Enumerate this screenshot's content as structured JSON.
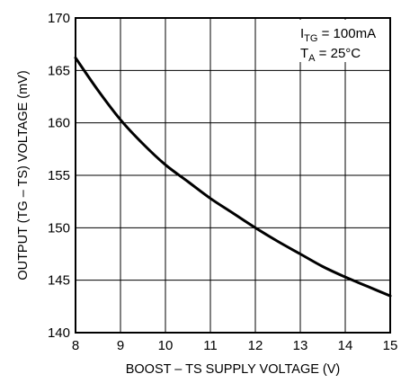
{
  "chart_data": {
    "type": "line",
    "title": "",
    "xlabel": "BOOST – TS SUPPLY VOLTAGE (V)",
    "ylabel": "OUTPUT (TG – TS) VOLTAGE (mV)",
    "xlim": [
      8,
      15
    ],
    "ylim": [
      140,
      170
    ],
    "x_ticks": [
      8,
      9,
      10,
      11,
      12,
      13,
      14,
      15
    ],
    "y_ticks": [
      140,
      145,
      150,
      155,
      160,
      165,
      170
    ],
    "x_tick_labels": [
      "8",
      "9",
      "10",
      "11",
      "12",
      "13",
      "14",
      "15"
    ],
    "y_tick_labels": [
      "140",
      "145",
      "150",
      "155",
      "160",
      "165",
      "170"
    ],
    "grid": true,
    "annotations": [
      {
        "main": "I",
        "sub": "TG",
        "rest": " = 100mA"
      },
      {
        "main": "T",
        "sub": "A",
        "rest": " = 25°C"
      }
    ],
    "series": [
      {
        "color": "#000000",
        "x": [
          8,
          8.5,
          9,
          9.5,
          10,
          10.5,
          11,
          11.5,
          12,
          12.5,
          13,
          13.5,
          14,
          14.5,
          15
        ],
        "y": [
          166.2,
          163.1,
          160.3,
          158.0,
          156.0,
          154.4,
          152.8,
          151.4,
          150.0,
          148.7,
          147.5,
          146.3,
          145.3,
          144.4,
          143.5
        ]
      }
    ]
  }
}
